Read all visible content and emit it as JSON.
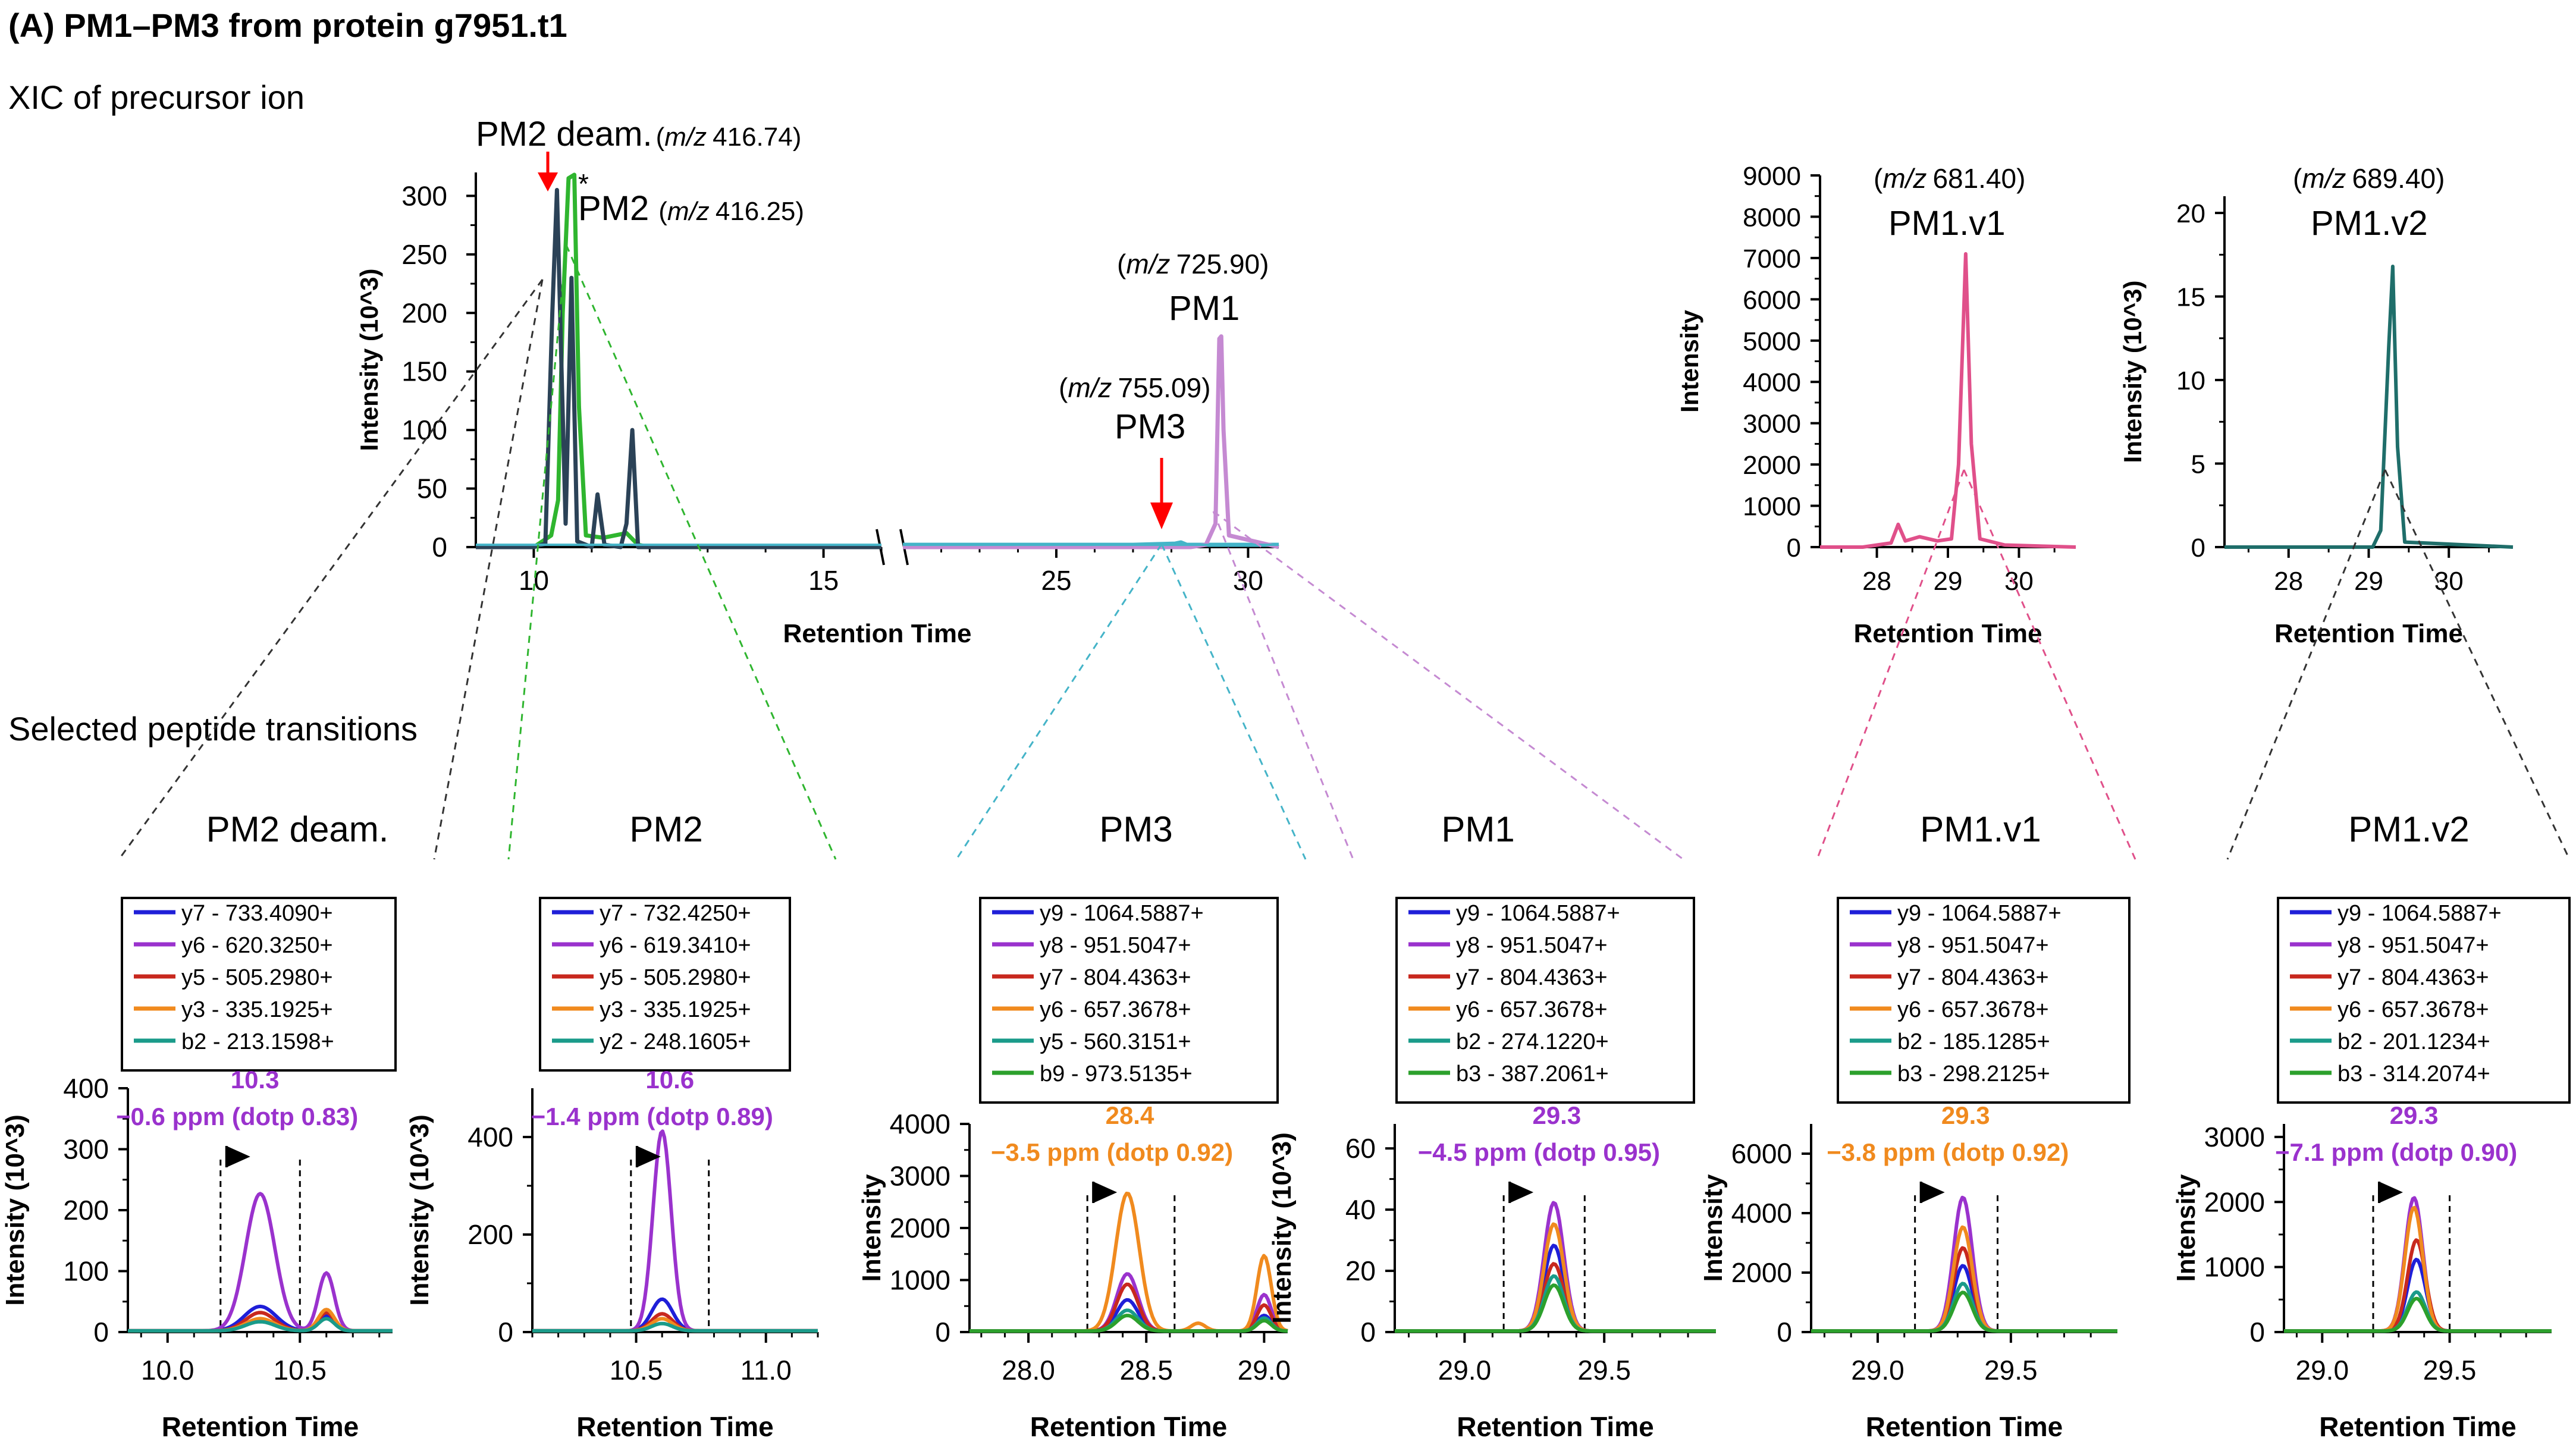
{
  "figure": {
    "title": "(A) PM1–PM3 from protein g7951.t1",
    "section_xic": "XIC of precursor ion",
    "section_transitions": "Selected peptide transitions",
    "star": "*"
  },
  "colors": {
    "pm2_deam": "#2b4257",
    "pm2": "#2fb52f",
    "pm1": "#c58ad2",
    "pm3": "#45b4c8",
    "pm1v1": "#e0508a",
    "pm1v2": "#1f6e6a",
    "red_arrow": "#ff0000",
    "purple_text": "#9a32cd",
    "orange_text": "#f08a1e"
  },
  "chart_data": [
    {
      "id": "xic-main",
      "type": "line",
      "title": "XIC of precursor ion",
      "xlabel": "Retention Time",
      "ylabel": "Intensity (10^3)",
      "ylim": [
        0,
        320
      ],
      "yticks": [
        "0",
        "50",
        "100",
        "150",
        "200",
        "250",
        "300"
      ],
      "xticks_left": [
        "10",
        "15"
      ],
      "xticks_right": [
        "25",
        "30"
      ],
      "xlim_left": [
        9,
        16
      ],
      "xlim_right": [
        21,
        30.8
      ],
      "axis_break": true,
      "series": [
        {
          "name": "PM2 deam.",
          "points": [
            [
              9,
              0
            ],
            [
              10,
              0
            ],
            [
              10.2,
              3
            ],
            [
              10.32,
              200
            ],
            [
              10.4,
              305
            ],
            [
              10.48,
              150
            ],
            [
              10.55,
              20
            ],
            [
              10.65,
              230
            ],
            [
              10.75,
              5
            ],
            [
              11,
              0
            ],
            [
              11.1,
              45
            ],
            [
              11.22,
              2
            ],
            [
              11.5,
              0
            ],
            [
              11.6,
              20
            ],
            [
              11.7,
              100
            ],
            [
              11.8,
              0
            ],
            [
              16,
              0
            ]
          ]
        },
        {
          "name": "PM2",
          "points": [
            [
              9,
              0
            ],
            [
              10,
              0
            ],
            [
              10.3,
              10
            ],
            [
              10.42,
              40
            ],
            [
              10.5,
              200
            ],
            [
              10.6,
              315
            ],
            [
              10.7,
              318
            ],
            [
              10.78,
              120
            ],
            [
              10.9,
              10
            ],
            [
              11.2,
              8
            ],
            [
              11.6,
              12
            ],
            [
              11.8,
              2
            ],
            [
              12,
              0
            ],
            [
              16,
              0
            ]
          ]
        },
        {
          "name": "PM3",
          "points": [
            [
              21,
              2
            ],
            [
              27,
              2
            ],
            [
              28.1,
              3
            ],
            [
              28.25,
              4
            ],
            [
              28.4,
              2
            ],
            [
              30.8,
              2
            ]
          ]
        },
        {
          "name": "PM1",
          "points": [
            [
              21,
              0
            ],
            [
              28.5,
              0
            ],
            [
              28.9,
              2
            ],
            [
              29.15,
              20
            ],
            [
              29.25,
              178
            ],
            [
              29.3,
              180
            ],
            [
              29.36,
              100
            ],
            [
              29.5,
              10
            ],
            [
              30.8,
              0
            ]
          ]
        }
      ],
      "annotations": [
        {
          "label": "PM2 deam.",
          "mz": "416.74"
        },
        {
          "label": "PM2",
          "mz": "416.25"
        },
        {
          "label": "PM1",
          "mz": "725.90"
        },
        {
          "label": "PM3",
          "mz": "755.09"
        }
      ]
    },
    {
      "id": "xic-pm1v1",
      "type": "line",
      "title": "PM1.v1",
      "mz": "681.40",
      "xlabel": "Retention Time",
      "ylabel": "Intensity",
      "xlim": [
        27.2,
        30.8
      ],
      "ylim": [
        0,
        9000
      ],
      "xticks": [
        "28",
        "29",
        "30"
      ],
      "yticks": [
        "0",
        "1000",
        "2000",
        "3000",
        "4000",
        "5000",
        "6000",
        "7000",
        "8000",
        "9000"
      ],
      "series": [
        {
          "name": "PM1.v1",
          "points": [
            [
              27.2,
              0
            ],
            [
              27.8,
              0
            ],
            [
              28.2,
              100
            ],
            [
              28.3,
              550
            ],
            [
              28.4,
              150
            ],
            [
              28.6,
              250
            ],
            [
              28.85,
              150
            ],
            [
              29.05,
              200
            ],
            [
              29.15,
              2000
            ],
            [
              29.25,
              7100
            ],
            [
              29.33,
              2500
            ],
            [
              29.45,
              200
            ],
            [
              29.8,
              50
            ],
            [
              30.8,
              0
            ]
          ]
        }
      ]
    },
    {
      "id": "xic-pm1v2",
      "type": "line",
      "title": "PM1.v2",
      "mz": "689.40",
      "xlabel": "Retention Time",
      "ylabel": "Intensity (10^3)",
      "xlim": [
        27.2,
        30.8
      ],
      "ylim": [
        0,
        21
      ],
      "xticks": [
        "28",
        "29",
        "30"
      ],
      "yticks": [
        "0",
        "5",
        "10",
        "15",
        "20"
      ],
      "series": [
        {
          "name": "PM1.v2",
          "points": [
            [
              27.2,
              0
            ],
            [
              29.05,
              0
            ],
            [
              29.15,
              1
            ],
            [
              29.25,
              12
            ],
            [
              29.3,
              16.8
            ],
            [
              29.36,
              6
            ],
            [
              29.45,
              0.3
            ],
            [
              30.8,
              0
            ]
          ]
        }
      ]
    },
    {
      "id": "tr-pm2deam",
      "type": "line",
      "title": "PM2 deam.",
      "xlabel": "Retention Time",
      "ylabel": "Intensity (10^3)",
      "xlim": [
        9.85,
        10.85
      ],
      "ylim": [
        0,
        400
      ],
      "xticks": [
        "10.0",
        "10.5"
      ],
      "yticks": [
        "0",
        "100",
        "200",
        "300",
        "400"
      ],
      "peak_rt": "10.3",
      "ppm": "−0.6 ppm (dotp 0.83)",
      "ppm_color": "purple",
      "boundaries": [
        10.2,
        10.5
      ],
      "legend": [
        "y7 - 733.4090+",
        "y6 - 620.3250+",
        "y5 - 505.2980+",
        "y3 - 335.1925+",
        "b2 - 213.1598+"
      ],
      "series": [
        {
          "name": "y7 - 733.4090+",
          "color": "#1f1fd8",
          "peaks": [
            [
              10.35,
              40,
              0.06
            ],
            [
              10.6,
              25,
              0.03
            ]
          ]
        },
        {
          "name": "y6 - 620.3250+",
          "color": "#9a32cd",
          "peaks": [
            [
              10.35,
              225,
              0.055
            ],
            [
              10.6,
              95,
              0.03
            ]
          ]
        },
        {
          "name": "y5 - 505.2980+",
          "color": "#c8281e",
          "peaks": [
            [
              10.35,
              30,
              0.055
            ],
            [
              10.6,
              30,
              0.03
            ]
          ]
        },
        {
          "name": "y3 - 335.1925+",
          "color": "#f08a1e",
          "peaks": [
            [
              10.35,
              20,
              0.055
            ],
            [
              10.6,
              35,
              0.03
            ]
          ]
        },
        {
          "name": "b2 - 213.1598+",
          "color": "#1a9b8a",
          "peaks": [
            [
              10.35,
              15,
              0.055
            ],
            [
              10.6,
              20,
              0.03
            ]
          ]
        }
      ]
    },
    {
      "id": "tr-pm2",
      "type": "line",
      "title": "PM2",
      "xlabel": "Retention Time",
      "ylabel": "Intensity (10^3)",
      "xlim": [
        10.1,
        11.2
      ],
      "ylim": [
        0,
        500
      ],
      "xticks": [
        "10.5",
        "11.0"
      ],
      "yticks": [
        "0",
        "200",
        "400"
      ],
      "peak_rt": "10.6",
      "ppm": "−1.4 ppm (dotp 0.89)",
      "ppm_color": "purple",
      "boundaries": [
        10.48,
        10.78
      ],
      "legend": [
        "y7 - 732.4250+",
        "y6 - 619.3410+",
        "y5 - 505.2980+",
        "y3 - 335.1925+",
        "y2 - 248.1605+"
      ],
      "series": [
        {
          "name": "y7 - 732.4250+",
          "color": "#1f1fd8",
          "peaks": [
            [
              10.6,
              65,
              0.04
            ]
          ]
        },
        {
          "name": "y6 - 619.3410+",
          "color": "#9a32cd",
          "peaks": [
            [
              10.6,
              410,
              0.035
            ]
          ]
        },
        {
          "name": "y5 - 505.2980+",
          "color": "#c8281e",
          "peaks": [
            [
              10.6,
              35,
              0.04
            ]
          ]
        },
        {
          "name": "y3 - 335.1925+",
          "color": "#f08a1e",
          "peaks": [
            [
              10.6,
              25,
              0.04
            ]
          ]
        },
        {
          "name": "y2 - 248.1605+",
          "color": "#1a9b8a",
          "peaks": [
            [
              10.6,
              15,
              0.04
            ]
          ]
        }
      ]
    },
    {
      "id": "tr-pm3",
      "type": "line",
      "title": "PM3",
      "xlabel": "Retention Time",
      "ylabel": "Intensity",
      "xlim": [
        27.75,
        29.1
      ],
      "ylim": [
        0,
        4000
      ],
      "xticks": [
        "28.0",
        "28.5",
        "29.0"
      ],
      "yticks": [
        "0",
        "1000",
        "2000",
        "3000",
        "4000"
      ],
      "peak_rt": "28.4",
      "ppm": "−3.5 ppm (dotp 0.92)",
      "ppm_color": "orange",
      "boundaries": [
        28.25,
        28.62
      ],
      "legend": [
        "y9 - 1064.5887+",
        "y8 - 951.5047+",
        "y7 - 804.4363+",
        "y6 - 657.3678+",
        "y5 - 560.3151+",
        "b9 - 973.5135+"
      ],
      "series": [
        {
          "name": "y9 - 1064.5887+",
          "color": "#1f1fd8",
          "peaks": [
            [
              28.42,
              600,
              0.045
            ],
            [
              29.0,
              300,
              0.03
            ]
          ]
        },
        {
          "name": "y8 - 951.5047+",
          "color": "#9a32cd",
          "peaks": [
            [
              28.42,
              1100,
              0.045
            ],
            [
              29.0,
              700,
              0.03
            ]
          ]
        },
        {
          "name": "y7 - 804.4363+",
          "color": "#c8281e",
          "peaks": [
            [
              28.42,
              900,
              0.045
            ],
            [
              29.0,
              500,
              0.03
            ]
          ]
        },
        {
          "name": "y6 - 657.3678+",
          "color": "#f08a1e",
          "peaks": [
            [
              28.42,
              2650,
              0.05
            ],
            [
              28.72,
              150,
              0.03
            ],
            [
              29.0,
              1450,
              0.03
            ]
          ]
        },
        {
          "name": "y5 - 560.3151+",
          "color": "#1a9b8a",
          "peaks": [
            [
              28.42,
              400,
              0.045
            ],
            [
              29.0,
              250,
              0.03
            ]
          ]
        },
        {
          "name": "b9 - 973.5135+",
          "color": "#2ca02c",
          "peaks": [
            [
              28.42,
              300,
              0.045
            ],
            [
              29.0,
              200,
              0.03
            ]
          ]
        }
      ]
    },
    {
      "id": "tr-pm1",
      "type": "line",
      "title": "PM1",
      "xlabel": "Retention Time",
      "ylabel": "Intensity (10^3)",
      "xlim": [
        28.75,
        29.9
      ],
      "ylim": [
        0,
        68
      ],
      "xticks": [
        "29.0",
        "29.5"
      ],
      "yticks": [
        "0",
        "20",
        "40",
        "60"
      ],
      "peak_rt": "29.3",
      "ppm": "−4.5 ppm (dotp 0.95)",
      "ppm_color": "purple",
      "boundaries": [
        29.14,
        29.43
      ],
      "legend": [
        "y9 - 1064.5887+",
        "y8 - 951.5047+",
        "y7 - 804.4363+",
        "y6 - 657.3678+",
        "b2 - 274.1220+",
        "b3 - 387.2061+"
      ],
      "series": [
        {
          "name": "y9 - 1064.5887+",
          "color": "#1f1fd8",
          "peaks": [
            [
              29.32,
              28,
              0.035
            ]
          ]
        },
        {
          "name": "y8 - 951.5047+",
          "color": "#9a32cd",
          "peaks": [
            [
              29.32,
              42,
              0.035
            ]
          ]
        },
        {
          "name": "y7 - 804.4363+",
          "color": "#c8281e",
          "peaks": [
            [
              29.32,
              22,
              0.035
            ]
          ]
        },
        {
          "name": "y6 - 657.3678+",
          "color": "#f08a1e",
          "peaks": [
            [
              29.32,
              35,
              0.035
            ]
          ]
        },
        {
          "name": "b2 - 274.1220+",
          "color": "#1a9b8a",
          "peaks": [
            [
              29.32,
              18,
              0.035
            ]
          ]
        },
        {
          "name": "b3 - 387.2061+",
          "color": "#2ca02c",
          "peaks": [
            [
              29.32,
              15,
              0.035
            ]
          ]
        }
      ]
    },
    {
      "id": "tr-pm1v1",
      "type": "line",
      "title": "PM1.v1",
      "xlabel": "Retention Time",
      "ylabel": "Intensity",
      "xlim": [
        28.75,
        29.9
      ],
      "ylim": [
        0,
        7000
      ],
      "xticks": [
        "29.0",
        "29.5"
      ],
      "yticks": [
        "0",
        "2000",
        "4000",
        "6000"
      ],
      "peak_rt": "29.3",
      "ppm": "−3.8 ppm (dotp 0.92)",
      "ppm_color": "orange",
      "boundaries": [
        29.14,
        29.45
      ],
      "legend": [
        "y9 - 1064.5887+",
        "y8 - 951.5047+",
        "y7 - 804.4363+",
        "y6 - 657.3678+",
        "b2 - 185.1285+",
        "b3 - 298.2125+"
      ],
      "series": [
        {
          "name": "y9 - 1064.5887+",
          "color": "#1f1fd8",
          "peaks": [
            [
              29.32,
              2200,
              0.035
            ]
          ]
        },
        {
          "name": "y8 - 951.5047+",
          "color": "#9a32cd",
          "peaks": [
            [
              29.32,
              4500,
              0.035
            ]
          ]
        },
        {
          "name": "y7 - 804.4363+",
          "color": "#c8281e",
          "peaks": [
            [
              29.32,
              2800,
              0.035
            ]
          ]
        },
        {
          "name": "y6 - 657.3678+",
          "color": "#f08a1e",
          "peaks": [
            [
              29.32,
              3500,
              0.035
            ]
          ]
        },
        {
          "name": "b2 - 185.1285+",
          "color": "#1a9b8a",
          "peaks": [
            [
              29.32,
              1600,
              0.035
            ]
          ]
        },
        {
          "name": "b3 - 298.2125+",
          "color": "#2ca02c",
          "peaks": [
            [
              29.32,
              1300,
              0.035
            ]
          ]
        }
      ]
    },
    {
      "id": "tr-pm1v2",
      "type": "line",
      "title": "PM1.v2",
      "xlabel": "Retention Time",
      "ylabel": "Intensity",
      "xlim": [
        28.85,
        29.9
      ],
      "ylim": [
        0,
        3200
      ],
      "xticks": [
        "29.0",
        "29.5"
      ],
      "yticks": [
        "0",
        "1000",
        "2000",
        "3000"
      ],
      "peak_rt": "29.3",
      "ppm": "−7.1 ppm (dotp 0.90)",
      "ppm_color": "purple",
      "boundaries": [
        29.2,
        29.5
      ],
      "legend": [
        "y9 - 1064.5887+",
        "y8 - 951.5047+",
        "y7 - 804.4363+",
        "y6 - 657.3678+",
        "b2 - 201.1234+",
        "b3 - 314.2074+"
      ],
      "series": [
        {
          "name": "y9 - 1064.5887+",
          "color": "#1f1fd8",
          "peaks": [
            [
              29.37,
              1100,
              0.035
            ]
          ]
        },
        {
          "name": "y8 - 951.5047+",
          "color": "#9a32cd",
          "peaks": [
            [
              29.36,
              2050,
              0.035
            ]
          ]
        },
        {
          "name": "y7 - 804.4363+",
          "color": "#c8281e",
          "peaks": [
            [
              29.37,
              1400,
              0.035
            ]
          ]
        },
        {
          "name": "y6 - 657.3678+",
          "color": "#f08a1e",
          "peaks": [
            [
              29.36,
              1900,
              0.035
            ]
          ]
        },
        {
          "name": "b2 - 201.1234+",
          "color": "#1a9b8a",
          "peaks": [
            [
              29.37,
              600,
              0.035
            ]
          ]
        },
        {
          "name": "b3 - 314.2074+",
          "color": "#2ca02c",
          "peaks": [
            [
              29.37,
              500,
              0.035
            ]
          ]
        }
      ]
    }
  ]
}
